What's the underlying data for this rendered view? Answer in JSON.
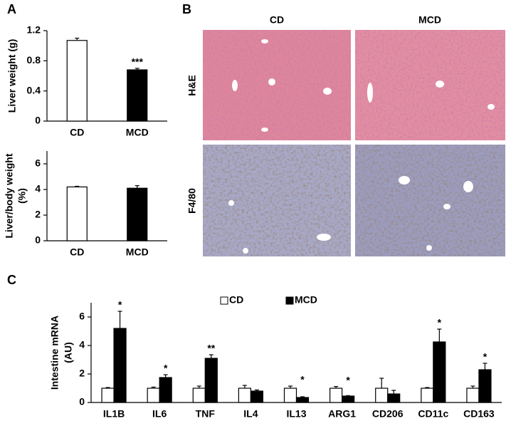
{
  "panel_labels": [
    "A",
    "B",
    "C"
  ],
  "histology": {
    "columns": [
      "CD",
      "MCD"
    ],
    "rows": [
      "H&E",
      "F4/80"
    ]
  },
  "chart_data": [
    {
      "type": "bar",
      "ylabel": "Liver weight (g)",
      "categories": [
        "CD",
        "MCD"
      ],
      "series": [
        {
          "values": [
            1.07,
            0.68
          ],
          "errors": [
            0.03,
            0.02
          ],
          "colors": [
            "#ffffff",
            "#000000"
          ]
        }
      ],
      "ylim": [
        0,
        1.2
      ],
      "yticks": [
        0,
        0.4,
        0.8,
        1.2
      ],
      "annotations": [
        {
          "at": "MCD",
          "text": "***"
        }
      ]
    },
    {
      "type": "bar",
      "ylabel_lines": [
        "Liver/body weight",
        "(%)"
      ],
      "categories": [
        "CD",
        "MCD"
      ],
      "series": [
        {
          "values": [
            4.2,
            4.1
          ],
          "errors": [
            0.05,
            0.2
          ],
          "colors": [
            "#ffffff",
            "#000000"
          ]
        }
      ],
      "ylim": [
        0,
        7
      ],
      "yticks": [
        0,
        2,
        4,
        6
      ]
    },
    {
      "type": "bar",
      "ylabel_lines": [
        "Intestine mRNA",
        "(AU)"
      ],
      "categories": [
        "IL1B",
        "IL6",
        "TNF",
        "IL4",
        "IL13",
        "ARG1",
        "CD206",
        "CD11c",
        "CD163"
      ],
      "series": [
        {
          "name": "CD",
          "color": "#ffffff",
          "values": [
            1,
            1,
            1,
            1,
            1,
            1,
            1,
            1,
            1
          ],
          "errors": [
            0.05,
            0.08,
            0.15,
            0.2,
            0.15,
            0.12,
            0.7,
            0.05,
            0.15
          ]
        },
        {
          "name": "MCD",
          "color": "#000000",
          "values": [
            5.2,
            1.75,
            3.1,
            0.8,
            0.35,
            0.45,
            0.6,
            4.25,
            2.3
          ],
          "errors": [
            1.2,
            0.2,
            0.25,
            0.08,
            0.05,
            0.03,
            0.25,
            0.9,
            0.45
          ]
        }
      ],
      "ylim": [
        0,
        7
      ],
      "yticks": [
        0,
        2,
        4,
        6
      ],
      "legend": "top",
      "annotations": [
        {
          "at": "IL1B",
          "text": "*"
        },
        {
          "at": "IL6",
          "text": "*"
        },
        {
          "at": "TNF",
          "text": "**"
        },
        {
          "at": "IL13",
          "text": "*"
        },
        {
          "at": "ARG1",
          "text": "*"
        },
        {
          "at": "CD11c",
          "text": "*"
        },
        {
          "at": "CD163",
          "text": "*"
        }
      ]
    }
  ]
}
